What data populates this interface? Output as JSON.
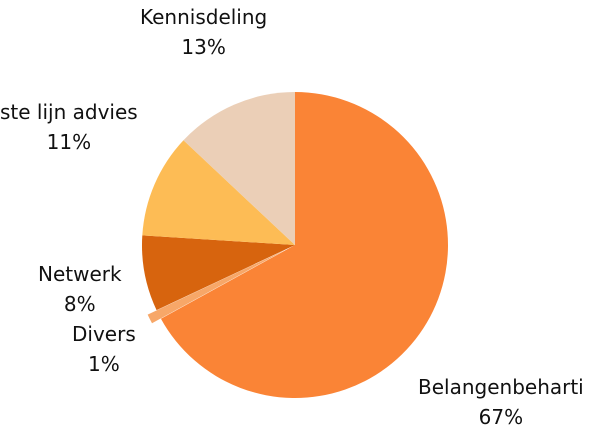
{
  "chart_data": {
    "type": "pie",
    "slices": [
      {
        "label": "Belangenbeharti",
        "value": 67,
        "value_label": "67%",
        "color": "#FA8436"
      },
      {
        "label": "Divers",
        "value": 1,
        "value_label": "1%",
        "color": "#F7A768"
      },
      {
        "label": "Netwerk",
        "value": 8,
        "value_label": "8%",
        "color": "#D7640E"
      },
      {
        "label": "ste lijn advies",
        "value": 11,
        "value_label": "11%",
        "color": "#FDBC55"
      },
      {
        "label": "Kennisdeling",
        "value": 13,
        "value_label": "13%",
        "color": "#EBCFB7"
      }
    ]
  }
}
